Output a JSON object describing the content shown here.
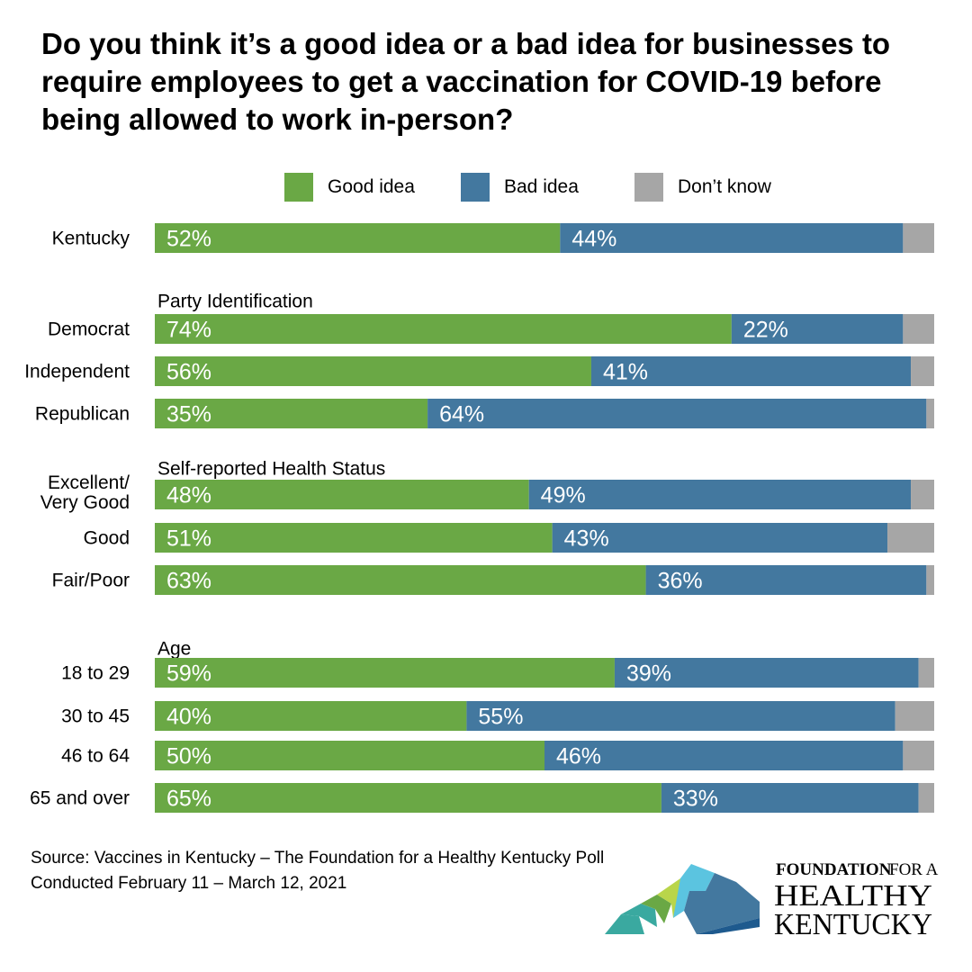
{
  "chart_data": {
    "type": "bar",
    "orientation": "horizontal",
    "stacked": true,
    "title": "Do you think it’s a good idea or a bad idea for businesses to require employees to get a vaccination for COVID-19 before being allowed to work in-person?",
    "legend": [
      "Good idea",
      "Bad idea",
      "Don’t know"
    ],
    "legend_position": "top",
    "xlim": [
      0,
      100
    ],
    "grid": false,
    "colors": {
      "good": "#6aa845",
      "bad": "#43789f",
      "dont_know": "#a6a6a6"
    },
    "groups": [
      {
        "label": "",
        "rows": [
          {
            "category": "Kentucky",
            "good": 52,
            "bad": 44,
            "dont_know": 4,
            "good_label": "52%",
            "bad_label": "44%"
          }
        ]
      },
      {
        "label": "Party Identification",
        "rows": [
          {
            "category": "Democrat",
            "good": 74,
            "bad": 22,
            "dont_know": 4,
            "good_label": "74%",
            "bad_label": "22%"
          },
          {
            "category": "Independent",
            "good": 56,
            "bad": 41,
            "dont_know": 3,
            "good_label": "56%",
            "bad_label": "41%"
          },
          {
            "category": "Republican",
            "good": 35,
            "bad": 64,
            "dont_know": 1,
            "good_label": "35%",
            "bad_label": "64%"
          }
        ]
      },
      {
        "label": "Self-reported Health Status",
        "rows": [
          {
            "category": "Excellent/\nVery Good",
            "good": 48,
            "bad": 49,
            "dont_know": 3,
            "good_label": "48%",
            "bad_label": "49%"
          },
          {
            "category": "Good",
            "good": 51,
            "bad": 43,
            "dont_know": 6,
            "good_label": "51%",
            "bad_label": "43%"
          },
          {
            "category": "Fair/Poor",
            "good": 63,
            "bad": 36,
            "dont_know": 1,
            "good_label": "63%",
            "bad_label": "36%"
          }
        ]
      },
      {
        "label": "Age",
        "rows": [
          {
            "category": "18 to 29",
            "good": 59,
            "bad": 39,
            "dont_know": 2,
            "good_label": "59%",
            "bad_label": "39%"
          },
          {
            "category": "30 to 45",
            "good": 40,
            "bad": 55,
            "dont_know": 5,
            "good_label": "40%",
            "bad_label": "55%"
          },
          {
            "category": "46 to 64",
            "good": 50,
            "bad": 46,
            "dont_know": 4,
            "good_label": "50%",
            "bad_label": "46%"
          },
          {
            "category": "65 and over",
            "good": 65,
            "bad": 33,
            "dont_know": 2,
            "good_label": "65%",
            "bad_label": "33%"
          }
        ]
      }
    ]
  },
  "source": {
    "line1": "Source: Vaccines in Kentucky – The Foundation for a Healthy Kentucky Poll",
    "line2": "Conducted February 11 – March 12, 2021"
  },
  "logo": {
    "line1_main": "FOUNDATION",
    "line1_rest": "FOR A",
    "line2": "HEALTHY",
    "line3": "KENTUCKY"
  }
}
